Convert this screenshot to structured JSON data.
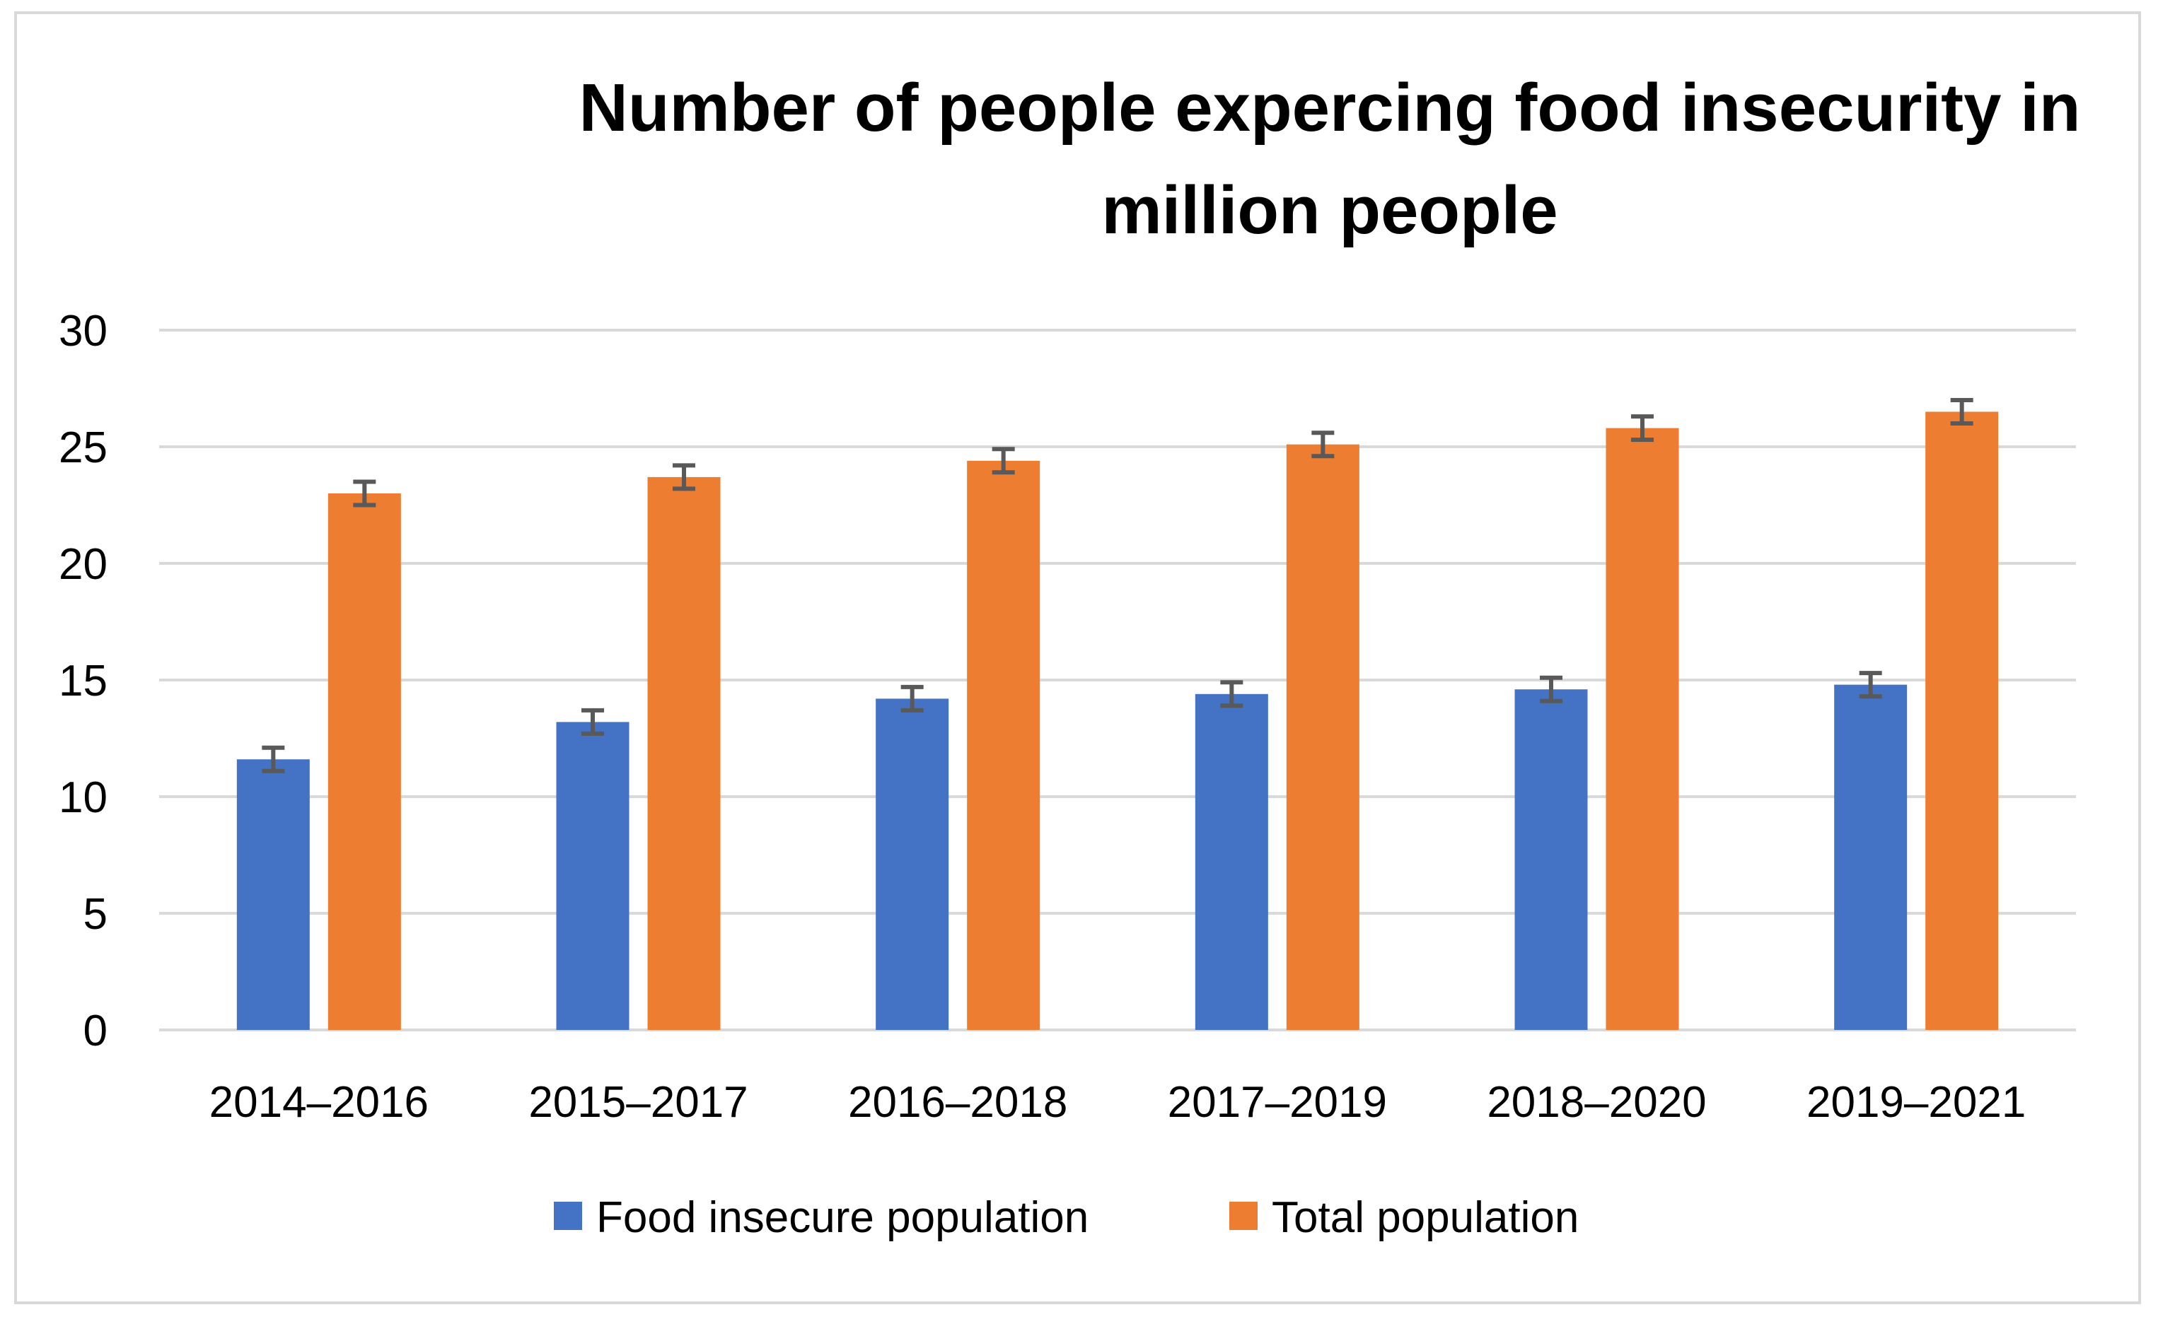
{
  "chart_data": {
    "type": "bar",
    "title_lines": [
      "Number of people expercing food insecurity in",
      "million people"
    ],
    "categories": [
      "2014–2016",
      "2015–2017",
      "2016–2018",
      "2017–2019",
      "2018–2020",
      "2019–2021"
    ],
    "series": [
      {
        "name": "Food insecure population",
        "color": "#4472c4",
        "values": [
          11.6,
          13.2,
          14.2,
          14.4,
          14.6,
          14.8
        ],
        "error": 0.5
      },
      {
        "name": "Total population",
        "color": "#ed7d31",
        "values": [
          23.0,
          23.7,
          24.4,
          25.1,
          25.8,
          26.5
        ],
        "error": 0.5
      }
    ],
    "ylim": [
      0,
      30
    ],
    "yticks": [
      0,
      5,
      10,
      15,
      20,
      25,
      30
    ],
    "xlabel": "",
    "ylabel": "",
    "grid": true,
    "legend_position": "bottom",
    "error_bar_color": "#595959",
    "grid_color": "#d9d9d9"
  }
}
